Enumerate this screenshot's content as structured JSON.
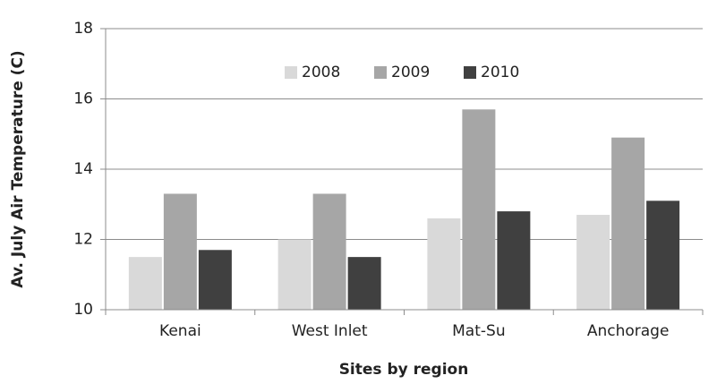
{
  "chart_data": {
    "type": "bar",
    "x_label": "Sites by region",
    "y_label": "Av. July Air Temperature (C)",
    "categories": [
      "Kenai",
      "West Inlet",
      "Mat-Su",
      "Anchorage"
    ],
    "series": [
      {
        "name": "2008",
        "color": "#d9d9d9",
        "values": [
          11.5,
          12.0,
          12.6,
          12.7
        ]
      },
      {
        "name": "2009",
        "color": "#a6a6a6",
        "values": [
          13.3,
          13.3,
          15.7,
          14.9
        ]
      },
      {
        "name": "2010",
        "color": "#404040",
        "values": [
          11.7,
          11.5,
          12.8,
          13.1
        ]
      }
    ],
    "ylim": [
      10,
      18
    ],
    "yticks": [
      10,
      12,
      14,
      16,
      18
    ],
    "grid": true,
    "legend": "top"
  }
}
